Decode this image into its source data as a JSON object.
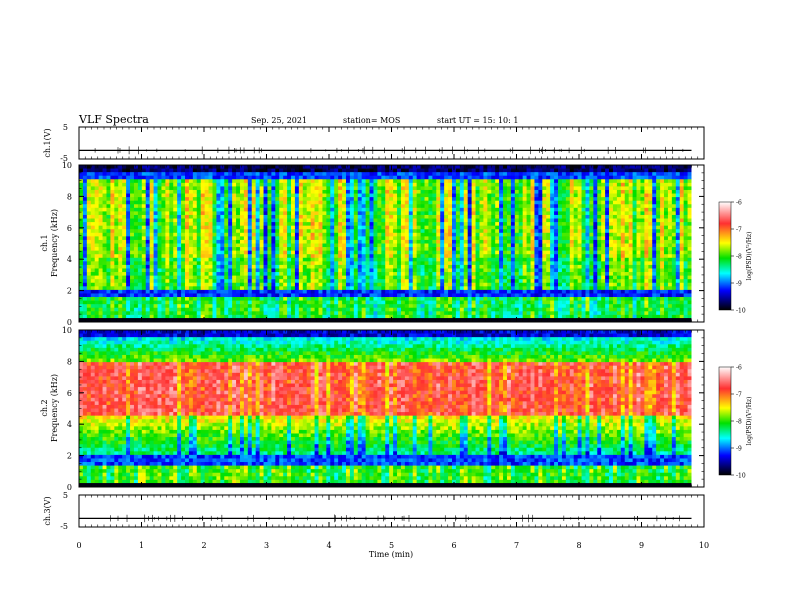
{
  "header": {
    "title": "VLF Spectra",
    "date": "Sep. 25, 2021",
    "station": "station= MOS",
    "start_ut": "start  UT =   15: 10: 1"
  },
  "colorbar": {
    "label": "log(PSD)(V²/Hz)",
    "ticks": [
      "-6",
      "-7",
      "-8",
      "-9",
      "-10"
    ],
    "colors": [
      "#ffffff",
      "#ff3030",
      "#ffff00",
      "#00e000",
      "#00ffff",
      "#0000ff",
      "#000000"
    ]
  },
  "chart_data": [
    {
      "type": "line",
      "ylabel": "ch.1(V)",
      "ylim": [
        -5,
        5
      ],
      "yticks": [
        "5",
        "-5"
      ],
      "xlim": [
        0,
        10
      ],
      "baseline": -2.3
    },
    {
      "type": "heatmap",
      "ylabel_top": "ch.1",
      "ylabel": "Frequency (kHz)",
      "ylim": [
        0,
        10
      ],
      "yticks": [
        "0",
        "2",
        "4",
        "6",
        "8",
        "10"
      ],
      "xlim": [
        0,
        10
      ],
      "zlim": [
        -10,
        -6
      ],
      "dominant_band_khz": [
        2,
        9.5
      ]
    },
    {
      "type": "heatmap",
      "ylabel_top": "ch.2",
      "ylabel": "Frequency (kHz)",
      "ylim": [
        0,
        10
      ],
      "yticks": [
        "0",
        "2",
        "4",
        "6",
        "8",
        "10"
      ],
      "xlim": [
        0,
        10
      ],
      "zlim": [
        -10,
        -6
      ],
      "dominant_band_khz": [
        4.5,
        8
      ]
    },
    {
      "type": "line",
      "ylabel": "ch.3(V)",
      "ylim": [
        -5,
        5
      ],
      "yticks": [
        "5",
        "-5"
      ],
      "xlim": [
        0,
        10
      ],
      "baseline": -2.3
    }
  ],
  "xaxis": {
    "label": "Time  (min)",
    "ticks": [
      "0",
      "1",
      "2",
      "3",
      "4",
      "5",
      "6",
      "7",
      "8",
      "9",
      "10"
    ]
  }
}
